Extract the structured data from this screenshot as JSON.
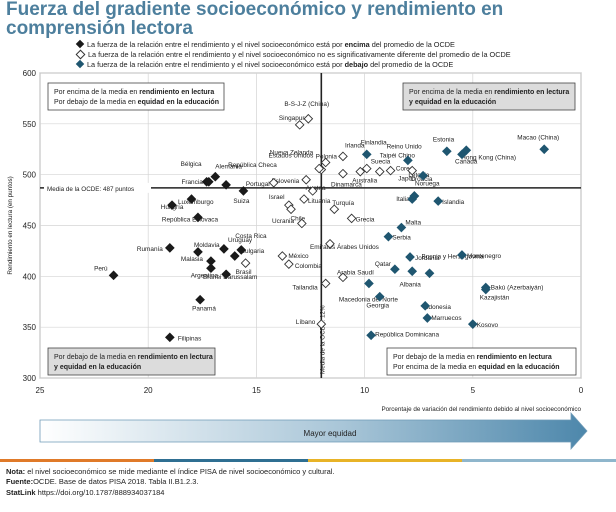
{
  "title": "Fuerza del gradiente socioeconómico y rendimiento en comprensión lectora",
  "legend": [
    {
      "marker": "filled-dark",
      "text_parts": [
        "La fuerza de la relación entre el rendimiento y el nivel socioeconómico está por ",
        "encima",
        " del promedio de la OCDE"
      ]
    },
    {
      "marker": "hollow",
      "text_parts": [
        "La fuerza de la relación entre el rendimiento y el nivel socioeconómico no es significativamente diferente del promedio de la OCDE",
        "",
        ""
      ]
    },
    {
      "marker": "filled-teal",
      "text_parts": [
        "La fuerza de la relación entre el rendimiento y el nivel socioeconómico está por ",
        "debajo",
        " del promedio de la OCDE"
      ]
    }
  ],
  "chart_data": {
    "type": "scatter",
    "ylabel": "Rendimiento en lectura (en puntos)",
    "xlabel": "Porcentaje de variación del rendimiento debido al nivel socioeconómico",
    "xlim": [
      25,
      0
    ],
    "ylim": [
      300,
      600
    ],
    "x_ticks": [
      25,
      20,
      15,
      10,
      5,
      0
    ],
    "y_ticks": [
      300,
      350,
      400,
      450,
      500,
      550,
      600
    ],
    "oecd_mean_performance": 487,
    "oecd_mean_performance_label": "Media de la OCDE: 487 puntos",
    "oecd_mean_variance": 12,
    "oecd_mean_variance_label": "Media de la OCDE: 12%",
    "colors": {
      "above": "#1a1a1a",
      "not_significant": "#ffffff",
      "below": "#1f5670",
      "outline": "#555555"
    },
    "quadrants": {
      "top_left": [
        "Por encima de la media en ",
        "rendimiento en lectura",
        "Por debajo de la media en ",
        "equidad en la educación"
      ],
      "top_right": [
        "Por encima de la media en ",
        "rendimiento en lectura y equidad en la educación"
      ],
      "bottom_left": [
        "Por debajo de la media en ",
        "rendimiento en lectura y equidad en la educación"
      ],
      "bottom_right": [
        "Por debajo de la media en ",
        "rendimiento en lectura",
        "Por encima de la media en ",
        "equidad en la educación"
      ]
    },
    "points": [
      {
        "name": "B-S-J-Z (China)",
        "x": 12.6,
        "y": 555,
        "group": "not_significant"
      },
      {
        "name": "Singapur",
        "x": 13.0,
        "y": 549,
        "group": "not_significant"
      },
      {
        "name": "Estados Unidos",
        "x": 12.0,
        "y": 505,
        "group": "not_significant"
      },
      {
        "name": "Irlanda",
        "x": 11.0,
        "y": 518,
        "group": "not_significant"
      },
      {
        "name": "Polonia",
        "x": 11.8,
        "y": 512,
        "group": "not_significant"
      },
      {
        "name": "Taipéi Chino",
        "x": 9.3,
        "y": 503,
        "group": "not_significant"
      },
      {
        "name": "Suecia",
        "x": 9.9,
        "y": 506,
        "group": "not_significant"
      },
      {
        "name": "Reino Unido",
        "x": 8.8,
        "y": 504,
        "group": "not_significant"
      },
      {
        "name": "Nueva Zelanda",
        "x": 12.1,
        "y": 506,
        "group": "not_significant"
      },
      {
        "name": "Eslovenia",
        "x": 12.7,
        "y": 495,
        "group": "not_significant"
      },
      {
        "name": "Dinamarca",
        "x": 11.0,
        "y": 501,
        "group": "not_significant"
      },
      {
        "name": "Australia",
        "x": 10.2,
        "y": 503,
        "group": "not_significant"
      },
      {
        "name": "Japón",
        "x": 7.8,
        "y": 504,
        "group": "not_significant"
      },
      {
        "name": "Portugal",
        "x": 14.2,
        "y": 492,
        "group": "not_significant"
      },
      {
        "name": "Austria",
        "x": 12.4,
        "y": 484,
        "group": "not_significant"
      },
      {
        "name": "Israel",
        "x": 13.5,
        "y": 470,
        "group": "not_significant"
      },
      {
        "name": "Turquía",
        "x": 11.4,
        "y": 466,
        "group": "not_significant"
      },
      {
        "name": "Letonia",
        "x": 7.7,
        "y": 479,
        "group": "not_significant"
      },
      {
        "name": "Ucrania",
        "x": 13.4,
        "y": 466,
        "group": "not_significant"
      },
      {
        "name": "Lituania",
        "x": 12.8,
        "y": 476,
        "group": "not_significant"
      },
      {
        "name": "Grecia",
        "x": 10.6,
        "y": 457,
        "group": "not_significant"
      },
      {
        "name": "Chile",
        "x": 12.9,
        "y": 452,
        "group": "not_significant"
      },
      {
        "name": "Emiratos Árabes Unidos",
        "x": 11.6,
        "y": 432,
        "group": "not_significant"
      },
      {
        "name": "Brasil",
        "x": 15.5,
        "y": 413,
        "group": "not_significant"
      },
      {
        "name": "México",
        "x": 13.8,
        "y": 420,
        "group": "not_significant"
      },
      {
        "name": "Colombia",
        "x": 13.5,
        "y": 412,
        "group": "not_significant"
      },
      {
        "name": "Arabia Saudí",
        "x": 11.0,
        "y": 399,
        "group": "not_significant"
      },
      {
        "name": "Tailandia",
        "x": 11.8,
        "y": 393,
        "group": "not_significant"
      },
      {
        "name": "Líbano",
        "x": 12.0,
        "y": 353,
        "group": "not_significant"
      },
      {
        "name": "Alemania",
        "x": 16.9,
        "y": 498,
        "group": "above"
      },
      {
        "name": "Bélgica",
        "x": 17.3,
        "y": 493,
        "group": "above"
      },
      {
        "name": "República Checa",
        "x": 16.4,
        "y": 490,
        "group": "above"
      },
      {
        "name": "Francia",
        "x": 17.2,
        "y": 493,
        "group": "above"
      },
      {
        "name": "Suiza",
        "x": 15.6,
        "y": 484,
        "group": "above"
      },
      {
        "name": "Luxemburgo",
        "x": 18.9,
        "y": 470,
        "group": "above"
      },
      {
        "name": "Hungría",
        "x": 18.0,
        "y": 476,
        "group": "above"
      },
      {
        "name": "República Eslovaca",
        "x": 17.7,
        "y": 458,
        "group": "above"
      },
      {
        "name": "Uruguay",
        "x": 16.5,
        "y": 427,
        "group": "above"
      },
      {
        "name": "Costa Rica",
        "x": 15.7,
        "y": 426,
        "group": "above"
      },
      {
        "name": "Bulgaria",
        "x": 16.0,
        "y": 420,
        "group": "above"
      },
      {
        "name": "Rumanía",
        "x": 19.0,
        "y": 428,
        "group": "above"
      },
      {
        "name": "Moldavia",
        "x": 17.7,
        "y": 424,
        "group": "above"
      },
      {
        "name": "Malasia",
        "x": 17.1,
        "y": 415,
        "group": "above"
      },
      {
        "name": "Argentina",
        "x": 16.4,
        "y": 402,
        "group": "above"
      },
      {
        "name": "Brunei Darussalam",
        "x": 17.1,
        "y": 408,
        "group": "above"
      },
      {
        "name": "Perú",
        "x": 21.6,
        "y": 401,
        "group": "above"
      },
      {
        "name": "Panamá",
        "x": 17.6,
        "y": 377,
        "group": "above"
      },
      {
        "name": "Filipinas",
        "x": 19.0,
        "y": 340,
        "group": "above"
      },
      {
        "name": "Macao (China)",
        "x": 1.7,
        "y": 525,
        "group": "below"
      },
      {
        "name": "Hong Kong (China)",
        "x": 5.3,
        "y": 524,
        "group": "below"
      },
      {
        "name": "Estonia",
        "x": 6.2,
        "y": 523,
        "group": "below"
      },
      {
        "name": "Canadá",
        "x": 5.5,
        "y": 520,
        "group": "below"
      },
      {
        "name": "Finlandia",
        "x": 9.9,
        "y": 520,
        "group": "below"
      },
      {
        "name": "Corea",
        "x": 8.0,
        "y": 514,
        "group": "below"
      },
      {
        "name": "Noruega",
        "x": 7.3,
        "y": 499,
        "group": "below"
      },
      {
        "name": "Italia",
        "x": 7.8,
        "y": 476,
        "group": "below"
      },
      {
        "name": "Islandia",
        "x": 6.6,
        "y": 474,
        "group": "below"
      },
      {
        "name": "Croacia",
        "x": 7.7,
        "y": 479,
        "group": "below"
      },
      {
        "name": "Malta",
        "x": 8.3,
        "y": 448,
        "group": "below"
      },
      {
        "name": "Serbia",
        "x": 8.9,
        "y": 439,
        "group": "below"
      },
      {
        "name": "Qatar",
        "x": 8.6,
        "y": 407,
        "group": "below"
      },
      {
        "name": "Jordania",
        "x": 7.9,
        "y": 419,
        "group": "below"
      },
      {
        "name": "Montenegro",
        "x": 5.5,
        "y": 421,
        "group": "below"
      },
      {
        "name": "Bosnia y Herzegovina",
        "x": 7.0,
        "y": 403,
        "group": "below"
      },
      {
        "name": "Albania",
        "x": 7.8,
        "y": 405,
        "group": "below"
      },
      {
        "name": "Bakú (Azerbaiyán)",
        "x": 4.4,
        "y": 389,
        "group": "below"
      },
      {
        "name": "Kazajistán",
        "x": 4.4,
        "y": 387,
        "group": "below"
      },
      {
        "name": "Georgia",
        "x": 9.3,
        "y": 380,
        "group": "below"
      },
      {
        "name": "Indonesia",
        "x": 7.2,
        "y": 371,
        "group": "below"
      },
      {
        "name": "Macedonia del Norte",
        "x": 9.8,
        "y": 393,
        "group": "below"
      },
      {
        "name": "Marruecos",
        "x": 7.1,
        "y": 359,
        "group": "below"
      },
      {
        "name": "Kosovo",
        "x": 5.0,
        "y": 353,
        "group": "below"
      },
      {
        "name": "República Dominicana",
        "x": 9.7,
        "y": 342,
        "group": "below"
      }
    ]
  },
  "arrow_label": "Mayor equidad",
  "footer": {
    "note_label": "Nota:",
    "note": " el nivel socioeconómico se mide mediante el índice PISA de nivel socioeconómico y cultural.",
    "source_label": "Fuente:",
    "source": "OCDE. Base de datos PISA 2018. Tabla II.B1.2.3.",
    "statlink_label": "StatLink",
    "statlink": " https://doi.org/10.1787/888934037184"
  }
}
